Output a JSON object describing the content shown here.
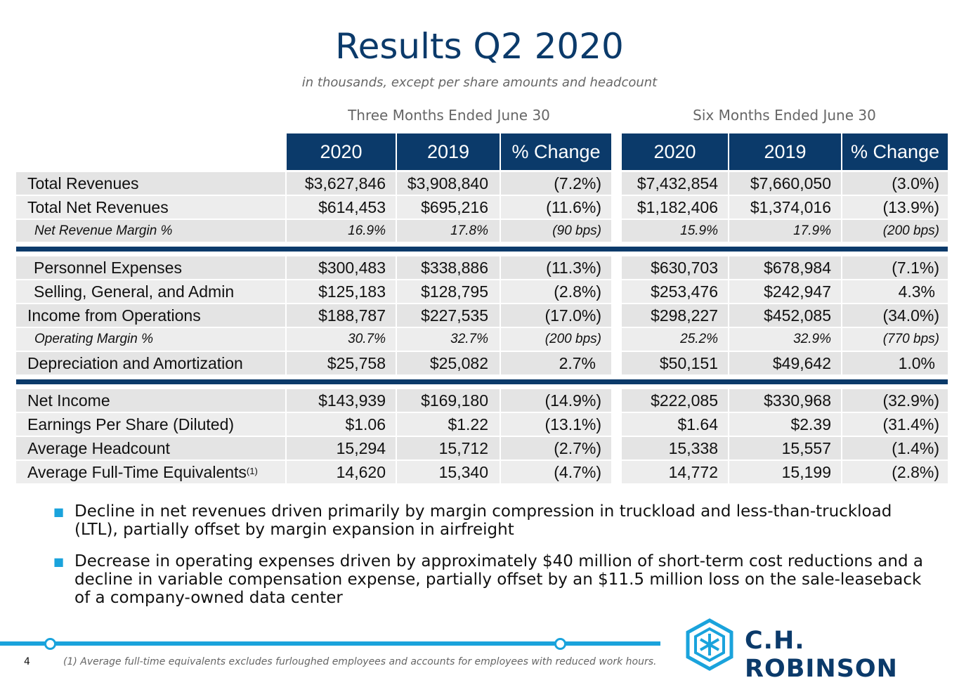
{
  "title": "Results Q2 2020",
  "subtitle": "in thousands, except per share amounts and headcount",
  "periods": [
    "Three Months Ended June 30",
    "Six Months Ended June 30"
  ],
  "columns": [
    "2020",
    "2019",
    "% Change",
    "2020",
    "2019",
    "% Change"
  ],
  "rows": [
    {
      "label": "Total Revenues",
      "values": [
        "$3,627,846",
        "$3,908,840",
        "(7.2%)",
        "$7,432,854",
        "$7,660,050",
        "(3.0%)"
      ]
    },
    {
      "label": "Total Net Revenues",
      "values": [
        "$614,453",
        "$695,216",
        "(11.6%)",
        "$1,182,406",
        "$1,374,016",
        "(13.9%)"
      ]
    },
    {
      "label": "Net Revenue Margin %",
      "values": [
        "16.9%",
        "17.8%",
        "(90 bps)",
        "15.9%",
        "17.9%",
        "(200 bps)"
      ]
    },
    {
      "label": "Personnel Expenses",
      "values": [
        "$300,483",
        "$338,886",
        "(11.3%)",
        "$630,703",
        "$678,984",
        "(7.1%)"
      ]
    },
    {
      "label": "Selling, General, and Admin",
      "values": [
        "$125,183",
        "$128,795",
        "(2.8%)",
        "$253,476",
        "$242,947",
        "4.3%"
      ]
    },
    {
      "label": "Income from Operations",
      "values": [
        "$188,787",
        "$227,535",
        "(17.0%)",
        "$298,227",
        "$452,085",
        "(34.0%)"
      ]
    },
    {
      "label": "Operating Margin %",
      "values": [
        "30.7%",
        "32.7%",
        "(200 bps)",
        "25.2%",
        "32.9%",
        "(770 bps)"
      ]
    },
    {
      "label": "Depreciation and Amortization",
      "values": [
        "$25,758",
        "$25,082",
        "2.7%",
        "$50,151",
        "$49,642",
        "1.0%"
      ]
    },
    {
      "label": "Net Income",
      "values": [
        "$143,939",
        "$169,180",
        "(14.9%)",
        "$222,085",
        "$330,968",
        "(32.9%)"
      ]
    },
    {
      "label": "Earnings Per Share (Diluted)",
      "values": [
        "$1.06",
        "$1.22",
        "(13.1%)",
        "$1.64",
        "$2.39",
        "(31.4%)"
      ]
    },
    {
      "label": "Average Headcount",
      "values": [
        "15,294",
        "15,712",
        "(2.7%)",
        "15,338",
        "15,557",
        "(1.4%)"
      ]
    },
    {
      "label": "Average Full-Time Equivalents",
      "footnote_mark": "(1)",
      "values": [
        "14,620",
        "15,340",
        "(4.7%)",
        "14,772",
        "15,199",
        "(2.8%)"
      ]
    }
  ],
  "bullets": [
    "Decline in net revenues driven primarily by margin compression in truckload and less-than-truckload (LTL), partially offset by margin expansion in airfreight",
    "Decrease in operating expenses driven by approximately $40 million of short-term cost reductions and a decline in variable compensation expense, partially offset by an $11.5 million loss on the sale-leaseback of a company-owned data center"
  ],
  "footer": {
    "page_number": "4",
    "footnote": "(1) Average full-time equivalents excludes furloughed employees and accounts for employees with reduced work hours.",
    "brand": "C.H. ROBINSON"
  },
  "colors": {
    "navy": "#0b3a6a",
    "accent": "#1aa3dc"
  }
}
